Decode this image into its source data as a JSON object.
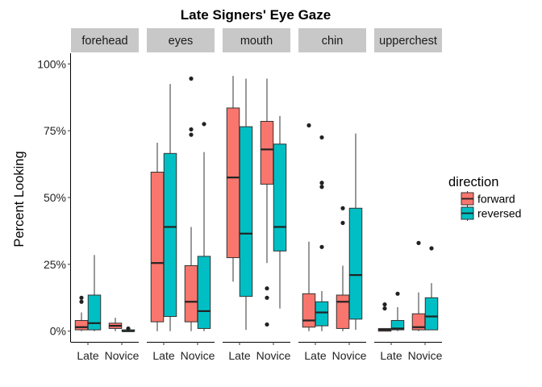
{
  "chart_data": {
    "type": "boxplot",
    "title": "Late Signers' Eye Gaze",
    "xlabel": "",
    "ylabel": "Percent Looking",
    "ylim": [
      -0.04,
      1.04
    ],
    "y_ticks": [
      0,
      0.25,
      0.5,
      0.75,
      1.0
    ],
    "y_tick_labels": [
      "0%",
      "25%",
      "50%",
      "75%",
      "100%"
    ],
    "categories": [
      "Late",
      "Novice"
    ],
    "facets": [
      "forehead",
      "eyes",
      "mouth",
      "chin",
      "upperchest"
    ],
    "legend": {
      "title": "direction",
      "position": "right",
      "entries": [
        {
          "name": "forward",
          "color": "#F8766D"
        },
        {
          "name": "reversed",
          "color": "#00BFC4"
        }
      ]
    },
    "panels": [
      {
        "facet": "forehead",
        "boxes": [
          {
            "category": "Late",
            "direction": "forward",
            "lower_whisker": 0.0,
            "q1": 0.005,
            "median": 0.015,
            "q3": 0.04,
            "upper_whisker": 0.07,
            "outliers": [
              0.11,
              0.125
            ]
          },
          {
            "category": "Late",
            "direction": "reversed",
            "lower_whisker": 0.0,
            "q1": 0.005,
            "median": 0.03,
            "q3": 0.135,
            "upper_whisker": 0.285,
            "outliers": []
          },
          {
            "category": "Novice",
            "direction": "forward",
            "lower_whisker": 0.0,
            "q1": 0.01,
            "median": 0.02,
            "q3": 0.03,
            "upper_whisker": 0.05,
            "outliers": []
          },
          {
            "category": "Novice",
            "direction": "reversed",
            "lower_whisker": 0.0,
            "q1": 0.0,
            "median": 0.0,
            "q3": 0.005,
            "upper_whisker": 0.005,
            "outliers": [
              0.01
            ]
          }
        ]
      },
      {
        "facet": "eyes",
        "boxes": [
          {
            "category": "Late",
            "direction": "forward",
            "lower_whisker": 0.0,
            "q1": 0.035,
            "median": 0.255,
            "q3": 0.595,
            "upper_whisker": 0.705,
            "outliers": []
          },
          {
            "category": "Late",
            "direction": "reversed",
            "lower_whisker": 0.0,
            "q1": 0.055,
            "median": 0.39,
            "q3": 0.665,
            "upper_whisker": 0.925,
            "outliers": []
          },
          {
            "category": "Novice",
            "direction": "forward",
            "lower_whisker": 0.0,
            "q1": 0.035,
            "median": 0.11,
            "q3": 0.245,
            "upper_whisker": 0.39,
            "outliers": [
              0.735,
              0.755,
              0.945
            ]
          },
          {
            "category": "Novice",
            "direction": "reversed",
            "lower_whisker": 0.0,
            "q1": 0.01,
            "median": 0.075,
            "q3": 0.28,
            "upper_whisker": 0.67,
            "outliers": [
              0.775
            ]
          }
        ]
      },
      {
        "facet": "mouth",
        "boxes": [
          {
            "category": "Late",
            "direction": "forward",
            "lower_whisker": 0.185,
            "q1": 0.275,
            "median": 0.575,
            "q3": 0.835,
            "upper_whisker": 0.955,
            "outliers": []
          },
          {
            "category": "Late",
            "direction": "reversed",
            "lower_whisker": 0.005,
            "q1": 0.13,
            "median": 0.365,
            "q3": 0.765,
            "upper_whisker": 0.945,
            "outliers": []
          },
          {
            "category": "Novice",
            "direction": "forward",
            "lower_whisker": 0.255,
            "q1": 0.55,
            "median": 0.68,
            "q3": 0.785,
            "upper_whisker": 0.945,
            "outliers": [
              0.025,
              0.125,
              0.16
            ]
          },
          {
            "category": "Novice",
            "direction": "reversed",
            "lower_whisker": 0.085,
            "q1": 0.3,
            "median": 0.39,
            "q3": 0.7,
            "upper_whisker": 0.805,
            "outliers": []
          }
        ]
      },
      {
        "facet": "chin",
        "boxes": [
          {
            "category": "Late",
            "direction": "forward",
            "lower_whisker": 0.0,
            "q1": 0.015,
            "median": 0.04,
            "q3": 0.14,
            "upper_whisker": 0.335,
            "outliers": [
              0.77
            ]
          },
          {
            "category": "Late",
            "direction": "reversed",
            "lower_whisker": 0.0,
            "q1": 0.02,
            "median": 0.07,
            "q3": 0.11,
            "upper_whisker": 0.15,
            "outliers": [
              0.315,
              0.54,
              0.555,
              0.725
            ]
          },
          {
            "category": "Novice",
            "direction": "forward",
            "lower_whisker": 0.0,
            "q1": 0.01,
            "median": 0.11,
            "q3": 0.135,
            "upper_whisker": 0.245,
            "outliers": [
              0.405,
              0.46
            ]
          },
          {
            "category": "Novice",
            "direction": "reversed",
            "lower_whisker": 0.005,
            "q1": 0.045,
            "median": 0.21,
            "q3": 0.46,
            "upper_whisker": 0.74,
            "outliers": []
          }
        ]
      },
      {
        "facet": "upperchest",
        "boxes": [
          {
            "category": "Late",
            "direction": "forward",
            "lower_whisker": 0.0,
            "q1": 0.0,
            "median": 0.005,
            "q3": 0.01,
            "upper_whisker": 0.01,
            "outliers": [
              0.085,
              0.1
            ]
          },
          {
            "category": "Late",
            "direction": "reversed",
            "lower_whisker": 0.0,
            "q1": 0.005,
            "median": 0.01,
            "q3": 0.04,
            "upper_whisker": 0.09,
            "outliers": [
              0.14
            ]
          },
          {
            "category": "Novice",
            "direction": "forward",
            "lower_whisker": 0.0,
            "q1": 0.005,
            "median": 0.015,
            "q3": 0.065,
            "upper_whisker": 0.145,
            "outliers": [
              0.33
            ]
          },
          {
            "category": "Novice",
            "direction": "reversed",
            "lower_whisker": 0.005,
            "q1": 0.005,
            "median": 0.055,
            "q3": 0.125,
            "upper_whisker": 0.18,
            "outliers": [
              0.31
            ]
          }
        ]
      }
    ]
  }
}
